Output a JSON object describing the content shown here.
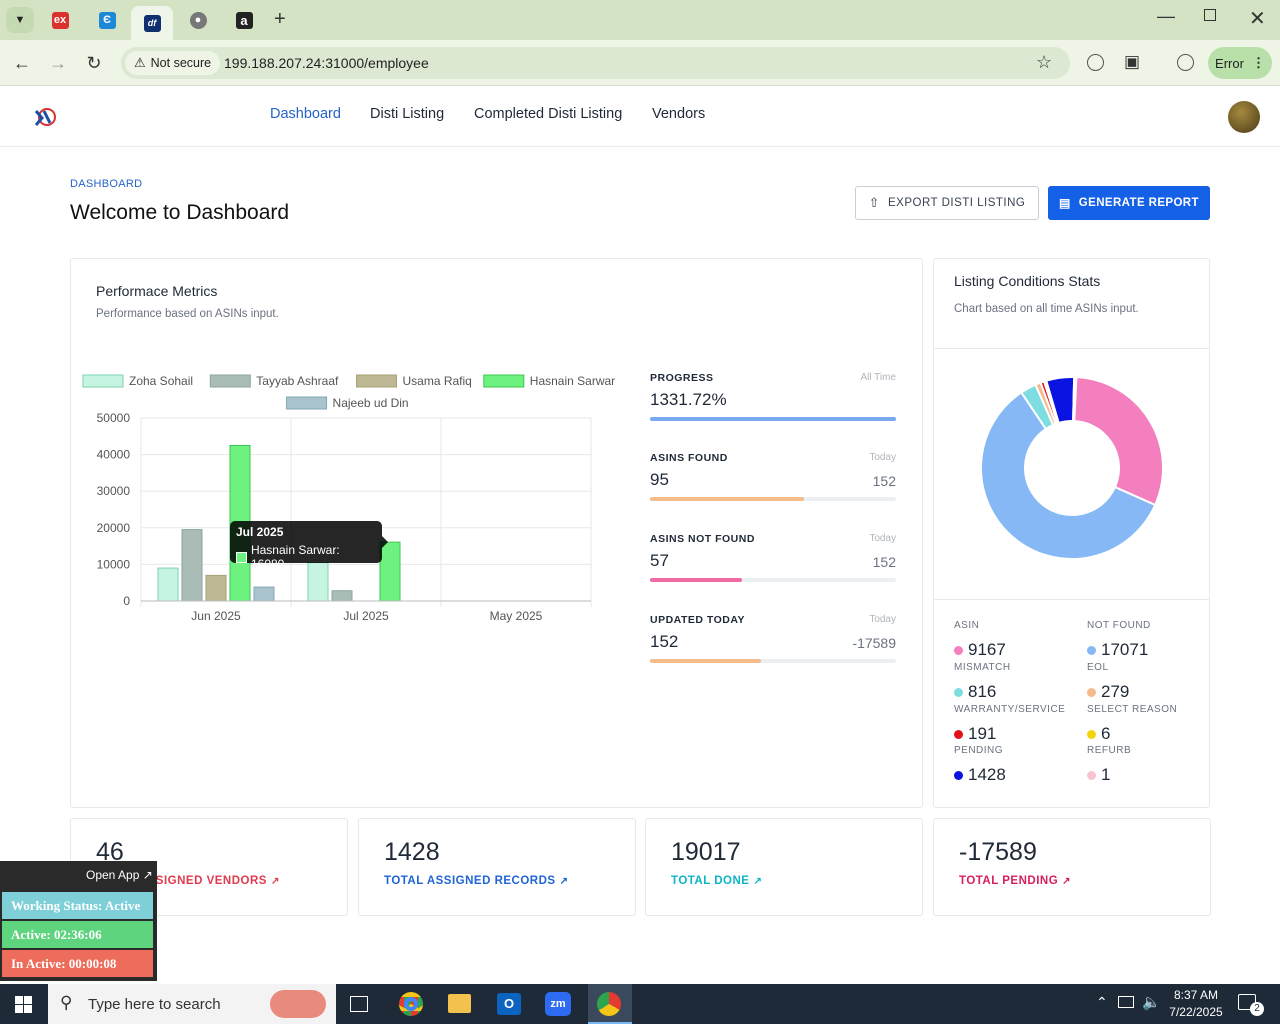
{
  "browser": {
    "tabs": [
      {
        "icon": "ex-favicon"
      },
      {
        "icon": "blue-app-favicon"
      },
      {
        "icon": "df-favicon",
        "text": "df"
      },
      {
        "icon": "globe-favicon"
      },
      {
        "icon": "amazon-favicon",
        "text": "a"
      }
    ],
    "security": "Not secure",
    "url": "199.188.207.24:31000/employee",
    "profile_status": "Error"
  },
  "nav": {
    "items": [
      "Dashboard",
      "Disti Listing",
      "Completed Disti Listing",
      "Vendors"
    ],
    "active": "Dashboard"
  },
  "page": {
    "breadcrumb": "DASHBOARD",
    "title": "Welcome to Dashboard",
    "export_btn": "EXPORT DISTI LISTING",
    "generate_btn": "GENERATE REPORT"
  },
  "performance": {
    "title": "Performace Metrics",
    "subtitle": "Performance based on ASINs input.",
    "tooltip": {
      "title": "Jul 2025",
      "text": "Hasnain Sarwar: 16080"
    }
  },
  "chart_data": {
    "type": "bar",
    "categories": [
      "Jun 2025",
      "Jul 2025",
      "May 2025"
    ],
    "ylim": [
      0,
      50000
    ],
    "yticks": [
      "50000",
      "40000",
      "30000",
      "20000",
      "10000",
      "0"
    ],
    "legend_position": "top",
    "series": [
      {
        "name": "Zoha Sohail",
        "color": "#c5f5e1",
        "border": "#7dd3b0",
        "values": [
          9000,
          10500,
          0
        ]
      },
      {
        "name": "Tayyab Ashraaf",
        "color": "#a9bdb6",
        "border": "#8aa39b",
        "values": [
          19500,
          2800,
          0
        ]
      },
      {
        "name": "Usama Rafiq",
        "color": "#bdb893",
        "border": "#a7a277",
        "values": [
          7000,
          0,
          0
        ]
      },
      {
        "name": "Hasnain Sarwar",
        "color": "#6ef27f",
        "border": "#3fc653",
        "values": [
          42500,
          16080,
          0
        ]
      },
      {
        "name": "Najeeb ud Din",
        "color": "#aac4cf",
        "border": "#86a6b4",
        "values": [
          3800,
          0,
          0
        ]
      }
    ]
  },
  "metrics": [
    {
      "label": "PROGRESS",
      "right_tag": "All Time",
      "value": "1331.72%",
      "right": "",
      "fill": 1.0,
      "color": "#7aa9f0"
    },
    {
      "label": "ASINS FOUND",
      "right_tag": "Today",
      "value": "95",
      "right": "152",
      "fill": 0.625,
      "color": "#f4bd8b"
    },
    {
      "label": "ASINS NOT FOUND",
      "right_tag": "Today",
      "value": "57",
      "right": "152",
      "fill": 0.375,
      "color": "#ef6aa3"
    },
    {
      "label": "UPDATED TODAY",
      "right_tag": "Today",
      "value": "152",
      "right": "-17589",
      "fill": 0.45,
      "color": "#f4bd8b"
    }
  ],
  "listing": {
    "title": "Listing Conditions Stats",
    "subtitle": "Chart based on all time ASINs input.",
    "stats": [
      {
        "label": "ASIN",
        "value": "9167",
        "color": "#f47fbe"
      },
      {
        "label": "NOT FOUND",
        "value": "17071",
        "color": "#86b8f5"
      },
      {
        "label": "MISMATCH",
        "value": "816",
        "color": "#7ddde0"
      },
      {
        "label": "EOL",
        "value": "279",
        "color": "#f6b98b"
      },
      {
        "label": "WARRANTY/SERVICE",
        "value": "191",
        "color": "#e3101c"
      },
      {
        "label": "SELECT REASON",
        "value": "6",
        "color": "#f2d40c"
      },
      {
        "label": "PENDING",
        "value": "1428",
        "color": "#0a13e0"
      },
      {
        "label": "REFURB",
        "value": "1",
        "color": "#f8c4cf"
      }
    ]
  },
  "totals": [
    {
      "value": "46",
      "label": "TOTAL ASSIGNED VENDORS",
      "color": "#e03a4e"
    },
    {
      "value": "1428",
      "label": "TOTAL ASSIGNED RECORDS",
      "color": "#1f64d6"
    },
    {
      "value": "19017",
      "label": "TOTAL DONE",
      "color": "#0fb3c9"
    },
    {
      "value": "-17589",
      "label": "TOTAL PENDING",
      "color": "#d61f5b"
    }
  ],
  "widget": {
    "open_app": "Open App ↗",
    "working": "Working Status: Active",
    "active": "Active: 02:36:06",
    "inactive": "In Active: 00:00:08"
  },
  "taskbar": {
    "search_placeholder": "Type here to search",
    "time": "8:37 AM",
    "date": "7/22/2025",
    "notifications": "2"
  }
}
